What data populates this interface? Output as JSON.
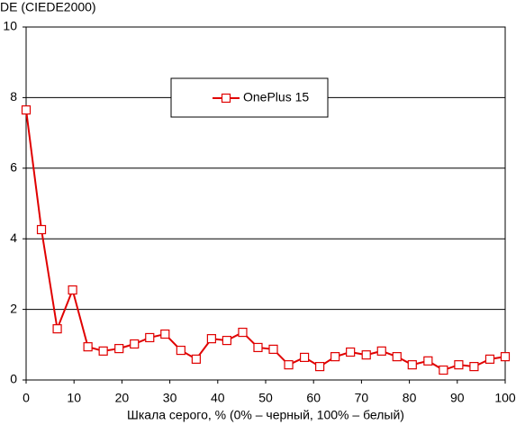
{
  "chart_data": {
    "type": "line",
    "y_label": "DE (CIEDE2000)",
    "x_label": "Шкала серого, % (0% – черный, 100% – белый)",
    "x": [
      0,
      3.2,
      6.5,
      9.7,
      12.9,
      16.1,
      19.4,
      22.6,
      25.8,
      29,
      32.3,
      35.5,
      38.7,
      41.9,
      45.2,
      48.4,
      51.6,
      54.8,
      58.1,
      61.3,
      64.5,
      67.7,
      71,
      74.2,
      77.4,
      80.6,
      83.9,
      87.1,
      90.3,
      93.5,
      96.8,
      100
    ],
    "series": [
      {
        "name": "OnePlus 15",
        "color": "#e00000",
        "values": [
          7.65,
          4.26,
          1.45,
          2.55,
          0.94,
          0.82,
          0.89,
          1.02,
          1.2,
          1.3,
          0.84,
          0.59,
          1.17,
          1.12,
          1.35,
          0.92,
          0.87,
          0.43,
          0.64,
          0.38,
          0.66,
          0.79,
          0.71,
          0.82,
          0.66,
          0.43,
          0.54,
          0.28,
          0.43,
          0.38,
          0.59,
          0.66
        ]
      }
    ],
    "xlim": [
      0,
      100
    ],
    "xticks": [
      0,
      10,
      20,
      30,
      40,
      50,
      60,
      70,
      80,
      90,
      100
    ],
    "ylim": [
      0,
      10
    ],
    "yticks": [
      0,
      2,
      4,
      6,
      8,
      10
    ],
    "grid": true
  }
}
